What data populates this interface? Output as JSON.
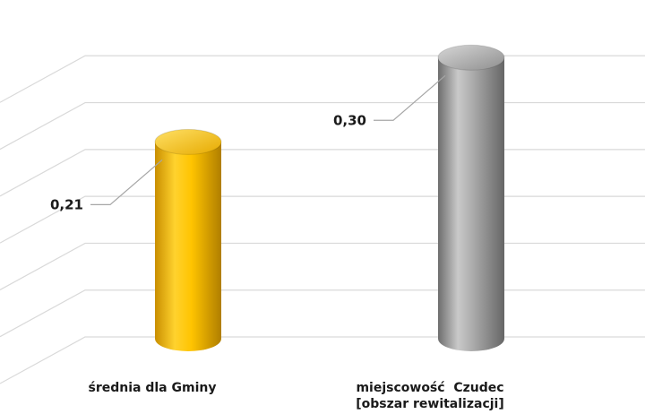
{
  "chart_data": {
    "type": "bar",
    "style": "3d-cylinder",
    "categories": [
      "średnia dla Gminy",
      "miejscowość  Czudec"
    ],
    "category_sublabels": [
      "",
      "[obszar rewitalizacji]"
    ],
    "values": [
      0.21,
      0.3
    ],
    "value_labels": [
      "0,21",
      "0,30"
    ],
    "colors": [
      "#f2b705",
      "#9c9c9c"
    ],
    "title": "",
    "xlabel": "",
    "ylabel": "",
    "ylim": [
      0,
      0.35
    ],
    "grid": true,
    "legend": "none"
  }
}
